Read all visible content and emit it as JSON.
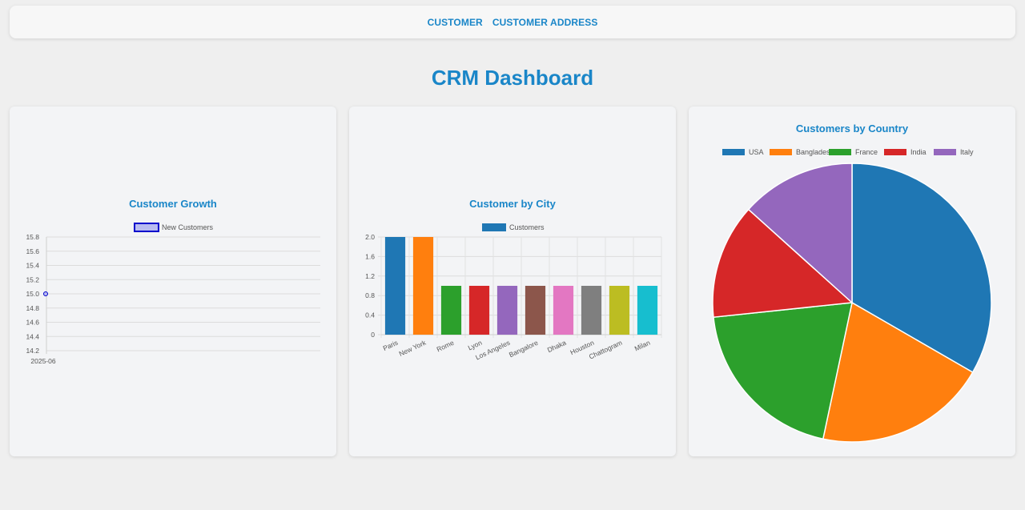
{
  "nav": {
    "items": [
      {
        "label": "CUSTOMER"
      },
      {
        "label": "CUSTOMER ADDRESS"
      }
    ]
  },
  "page_title": "CRM Dashboard",
  "colors": {
    "accent": "#1a86c8"
  },
  "chart_data": [
    {
      "type": "line",
      "title": "Customer Growth",
      "x": [
        "2025-06"
      ],
      "series": [
        {
          "name": "New Customers",
          "values": [
            15
          ],
          "color": "#0000cc",
          "fill": "#b9bcf0"
        }
      ],
      "ylim": [
        14.2,
        15.8
      ],
      "yticks": [
        "15.8",
        "15.6",
        "15.4",
        "15.2",
        "15.0",
        "14.8",
        "14.6",
        "14.4",
        "14.2"
      ],
      "grid": true,
      "legend": "top-center"
    },
    {
      "type": "bar",
      "title": "Customer by City",
      "categories": [
        "Paris",
        "New York",
        "Rome",
        "Lyon",
        "Los Angeles",
        "Bangalore",
        "Dhaka",
        "Houston",
        "Chattogram",
        "Milan"
      ],
      "series": [
        {
          "name": "Customers",
          "values": [
            2,
            2,
            1,
            1,
            1,
            1,
            1,
            1,
            1,
            1
          ]
        }
      ],
      "bar_colors": [
        "#1f77b4",
        "#ff7f0e",
        "#2ca02c",
        "#d62728",
        "#9467bd",
        "#8c564b",
        "#e377c2",
        "#7f7f7f",
        "#bcbd22",
        "#17becf"
      ],
      "ylim": [
        0,
        2
      ],
      "yticks": [
        "2.0",
        "1.6",
        "1.2",
        "0.8",
        "0.4",
        "0"
      ],
      "grid": true,
      "legend": "top-center"
    },
    {
      "type": "pie",
      "title": "Customers by Country",
      "labels": [
        "USA",
        "Bangladesh",
        "France",
        "India",
        "Italy"
      ],
      "values": [
        5,
        3,
        3,
        2,
        2
      ],
      "colors": [
        "#1f77b4",
        "#ff7f0e",
        "#2ca02c",
        "#d62728",
        "#9467bd"
      ],
      "legend": "top-center"
    }
  ]
}
